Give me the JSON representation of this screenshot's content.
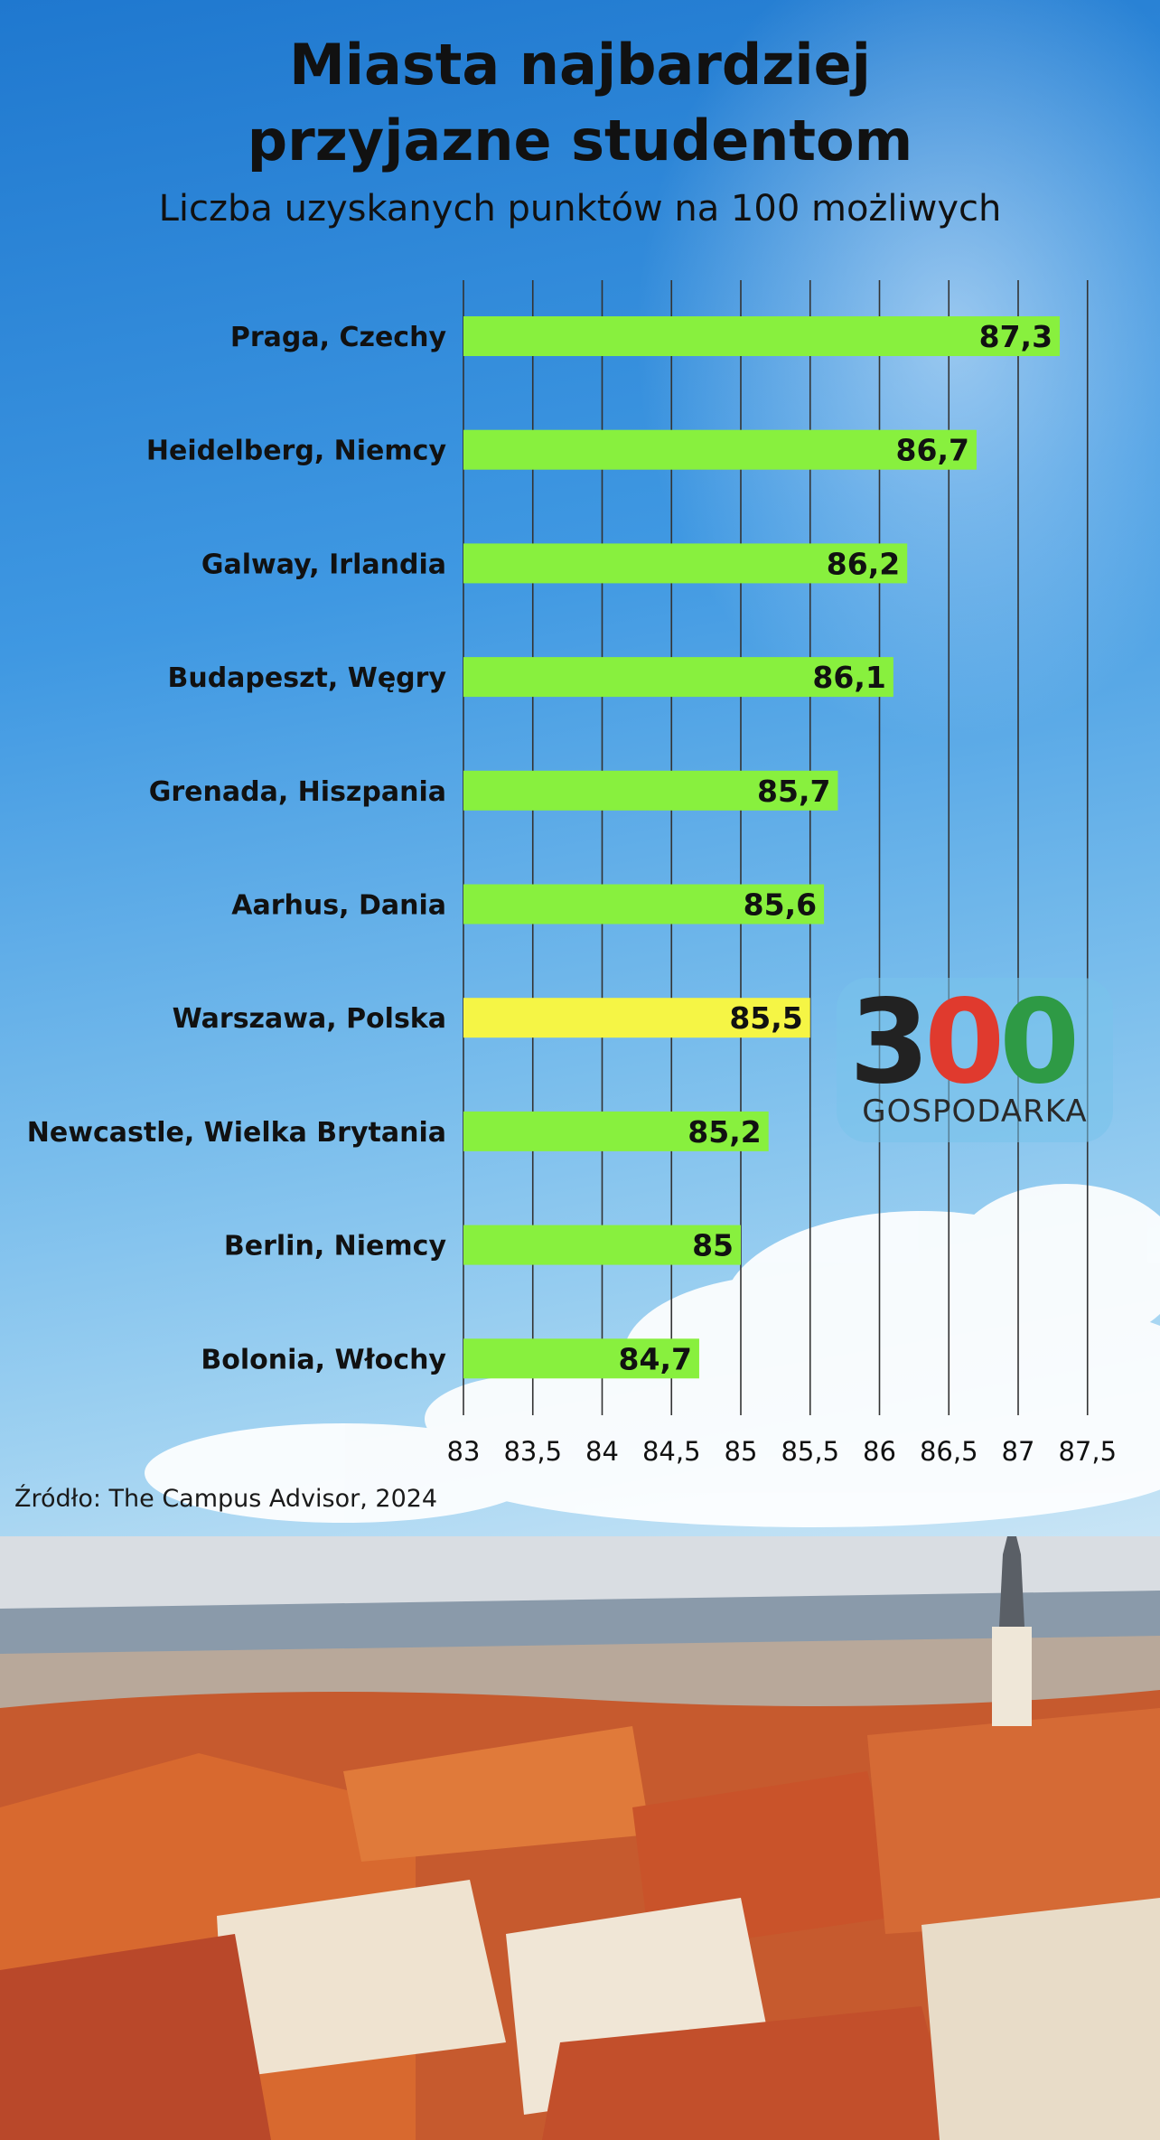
{
  "header": {
    "title_line1": "Miasta najbardziej",
    "title_line2": "przyjazne studentom",
    "subtitle": "Liczba uzyskanych punktów na 100 możliwych"
  },
  "source": "Źródło: The Campus Advisor, 2024",
  "logo": {
    "digit1": "3",
    "digit2": "0",
    "digit3": "0",
    "text": "GOSPODARKA",
    "colors": [
      "#222222",
      "#e03a2e",
      "#2e9a45"
    ]
  },
  "colors": {
    "bar": "#88f03e",
    "highlight": "#f5f545",
    "gridline": "#333333",
    "text": "#111111"
  },
  "chart_data": {
    "type": "bar",
    "orientation": "horizontal",
    "title": "Miasta najbardziej przyjazne studentom",
    "subtitle": "Liczba uzyskanych punktów na 100 możliwych",
    "categories": [
      "Praga, Czechy",
      "Heidelberg, Niemcy",
      "Galway, Irlandia",
      "Budapeszt, Węgry",
      "Grenada, Hiszpania",
      "Aarhus, Dania",
      "Warszawa, Polska",
      "Newcastle, Wielka Brytania",
      "Berlin, Niemcy",
      "Bolonia, Włochy"
    ],
    "values": [
      87.3,
      86.7,
      86.2,
      86.1,
      85.7,
      85.6,
      85.5,
      85.2,
      85.0,
      84.7
    ],
    "value_labels": [
      "87,3",
      "86,7",
      "86,2",
      "86,1",
      "85,7",
      "85,6",
      "85,5",
      "85,2",
      "85",
      "84,7"
    ],
    "highlight": "Warszawa, Polska",
    "xlim": [
      83,
      87.5
    ],
    "ticks": [
      83,
      83.5,
      84,
      84.5,
      85,
      85.5,
      86,
      86.5,
      87,
      87.5
    ],
    "tick_labels": [
      "83",
      "83,5",
      "84",
      "84,5",
      "85",
      "85,5",
      "86",
      "86,5",
      "87",
      "87,5"
    ],
    "grid": true
  }
}
